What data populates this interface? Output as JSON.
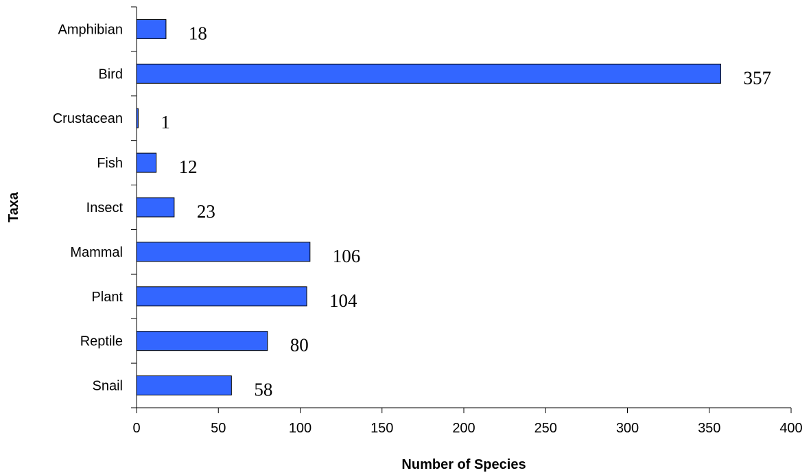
{
  "chart_data": {
    "type": "bar",
    "orientation": "horizontal",
    "categories": [
      "Amphibian",
      "Bird",
      "Crustacean",
      "Fish",
      "Insect",
      "Mammal",
      "Plant",
      "Reptile",
      "Snail"
    ],
    "values": [
      18,
      357,
      1,
      12,
      23,
      106,
      104,
      80,
      58
    ],
    "data_labels": [
      "18",
      "357",
      "1",
      "12",
      "23",
      "106",
      "104",
      "80",
      "58"
    ],
    "title": "",
    "xlabel": "Number of Species",
    "ylabel": "Taxa",
    "xlim": [
      0,
      400
    ],
    "xticks": [
      0,
      50,
      100,
      150,
      200,
      250,
      300,
      350,
      400
    ],
    "grid": false,
    "legend": "none",
    "bar_color": "#3366FF"
  }
}
